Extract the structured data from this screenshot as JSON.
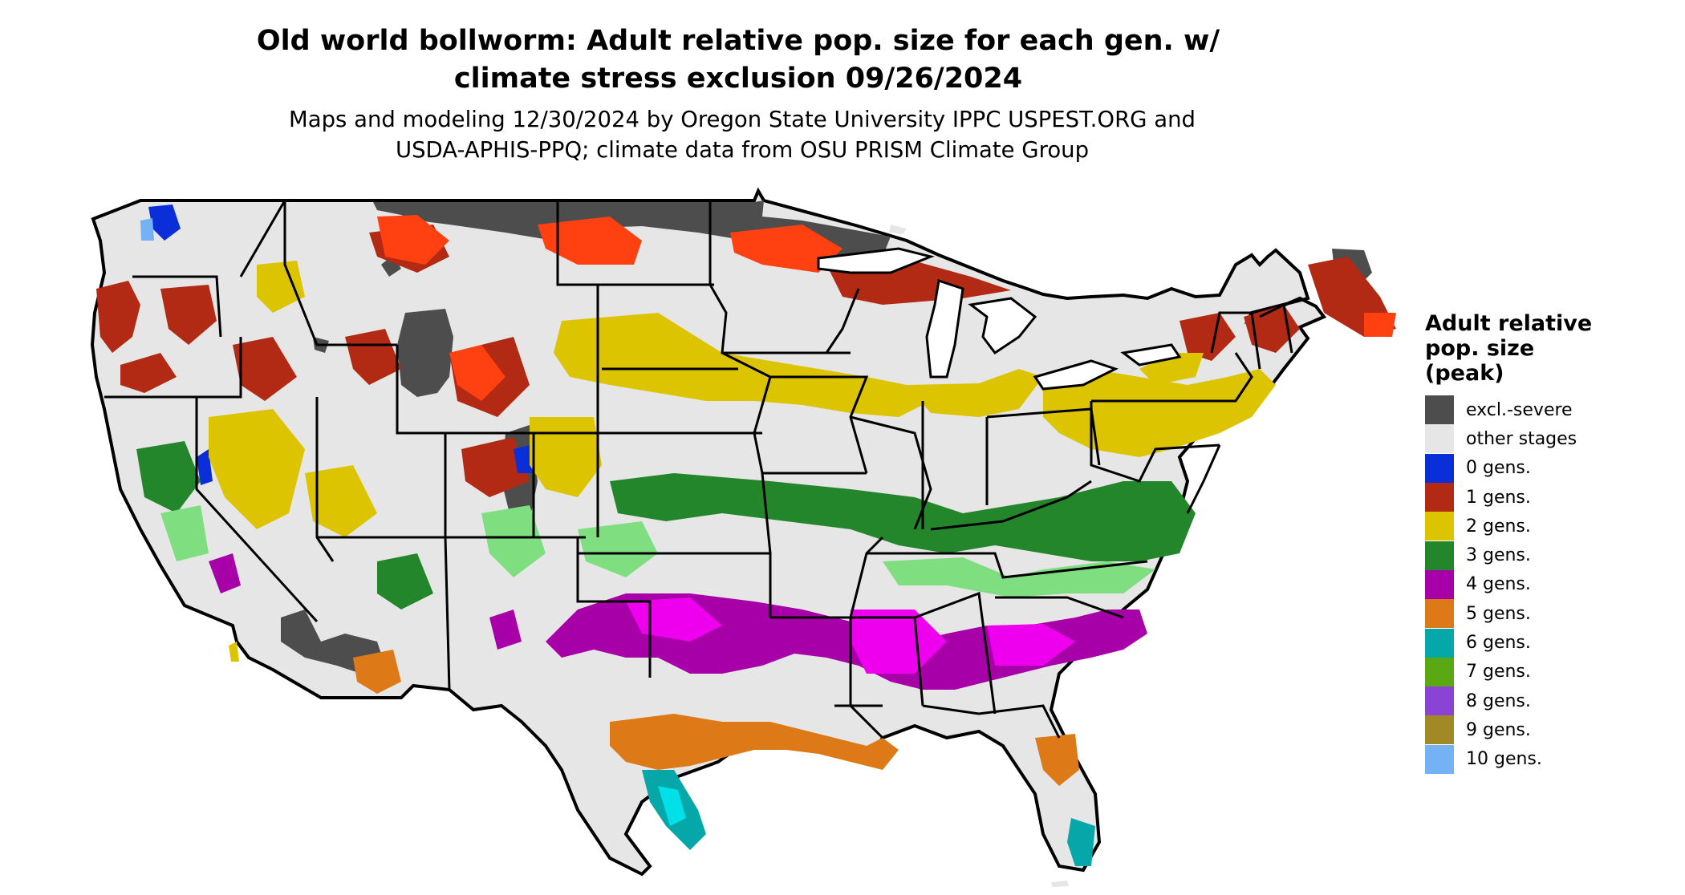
{
  "title_line1": "Old world bollworm: Adult relative pop. size for each gen. w/",
  "title_line2": "climate stress exclusion 09/26/2024",
  "subtitle_line1": "Maps and modeling 12/30/2024 by Oregon State University IPPC USPEST.ORG and",
  "subtitle_line2": "USDA-APHIS-PPQ; climate data from OSU PRISM Climate Group",
  "legend": {
    "title_line1": "Adult relative",
    "title_line2": "pop. size",
    "title_line3": "(peak)",
    "items": [
      {
        "label": "excl.-severe",
        "color": "#4d4d4d"
      },
      {
        "label": "other stages",
        "color": "#e6e6e6"
      },
      {
        "label": "0 gens.",
        "color": "#0a2fd9"
      },
      {
        "label": "1 gens.",
        "color": "#b22a14"
      },
      {
        "label": "2 gens.",
        "color": "#dcc400"
      },
      {
        "label": "3 gens.",
        "color": "#23862b"
      },
      {
        "label": "4 gens.",
        "color": "#a800a8"
      },
      {
        "label": "5 gens.",
        "color": "#dd7a17"
      },
      {
        "label": "6 gens.",
        "color": "#06a7a9"
      },
      {
        "label": "7 gens.",
        "color": "#5aa812"
      },
      {
        "label": "8 gens.",
        "color": "#8b43d6"
      },
      {
        "label": "9 gens.",
        "color": "#a18a26"
      },
      {
        "label": "10 gens.",
        "color": "#75b1f5"
      }
    ]
  }
}
